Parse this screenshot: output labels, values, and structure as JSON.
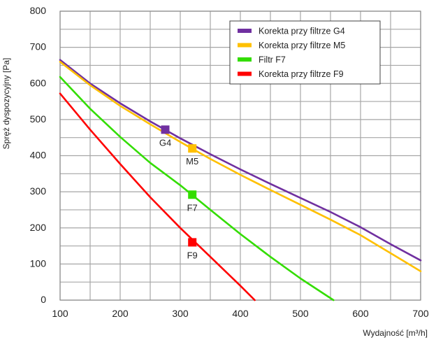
{
  "chart_data": {
    "type": "line",
    "xlabel": "Wydajność [m³/h]",
    "ylabel": "Spręż dyspozycyjny [Pa]",
    "xlim": [
      100,
      700
    ],
    "ylim": [
      0,
      800
    ],
    "x_major_ticks": [
      100,
      200,
      300,
      400,
      500,
      600,
      700
    ],
    "y_major_ticks": [
      0,
      100,
      200,
      300,
      400,
      500,
      600,
      700,
      800
    ],
    "x_minor_step": 50,
    "y_minor_step": 50,
    "grid": true,
    "legend_position": "top-right",
    "series": [
      {
        "name": "Korekta przy filtrze G4",
        "color": "#7030a0",
        "x": [
          100,
          150,
          200,
          250,
          300,
          350,
          400,
          450,
          500,
          550,
          600,
          650,
          700
        ],
        "y": [
          665,
          600,
          545,
          495,
          448,
          404,
          362,
          322,
          283,
          244,
          202,
          155,
          110
        ]
      },
      {
        "name": "Korekta przy filtrze M5",
        "color": "#ffc000",
        "x": [
          100,
          150,
          200,
          250,
          300,
          350,
          400,
          450,
          500,
          550,
          600,
          650,
          700
        ],
        "y": [
          660,
          595,
          538,
          487,
          438,
          391,
          347,
          305,
          264,
          223,
          180,
          130,
          80
        ]
      },
      {
        "name": "Filtr F7",
        "color": "#33dd00",
        "x": [
          100,
          150,
          200,
          250,
          300,
          350,
          400,
          450,
          500,
          555
        ],
        "y": [
          618,
          530,
          452,
          380,
          318,
          250,
          183,
          120,
          60,
          0
        ]
      },
      {
        "name": "Korekta przy filtrze F9",
        "color": "#ff0000",
        "x": [
          100,
          150,
          200,
          250,
          300,
          350,
          400,
          424
        ],
        "y": [
          572,
          472,
          377,
          285,
          200,
          120,
          40,
          0
        ]
      }
    ],
    "markers": [
      {
        "label": "G4",
        "x": 275,
        "y": 472,
        "color": "#7030a0",
        "label_side": "below-left"
      },
      {
        "label": "M5",
        "x": 320,
        "y": 420,
        "color": "#ffc000",
        "label_side": "below"
      },
      {
        "label": "F7",
        "x": 320,
        "y": 292,
        "color": "#33dd00",
        "label_side": "below"
      },
      {
        "label": "F9",
        "x": 320,
        "y": 160,
        "color": "#ff0000",
        "label_side": "below"
      }
    ]
  }
}
